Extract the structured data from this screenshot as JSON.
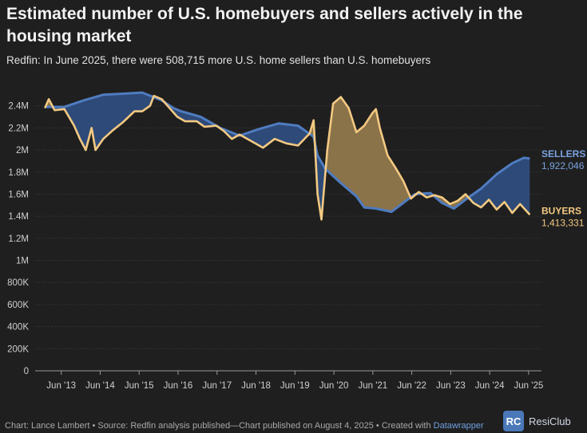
{
  "title": "Estimated number of U.S. homebuyers and sellers actively in the housing market",
  "subtitle": "Redfin: In June 2025, there were 508,715 more U.S. home sellers than U.S. homebuyers",
  "footer": {
    "credit": "Chart: Lance Lambert • Source: Redfin analysis published—Chart published on August 4, 2025 • Created with ",
    "tool": "Datawrapper"
  },
  "brand": {
    "logo": "RC",
    "name": "ResiClub"
  },
  "colors": {
    "sellers": "#4f7cc0",
    "buyers": "#f3c982",
    "fill_sellers_above": "#2e4a78",
    "fill_buyers_above": "#8a7249"
  },
  "chart_data": {
    "type": "area",
    "title": "Estimated number of U.S. homebuyers and sellers actively in the housing market",
    "ylim": [
      0,
      2600000
    ],
    "y_ticks": [
      0,
      200000,
      400000,
      600000,
      800000,
      1000000,
      1200000,
      1400000,
      1600000,
      1800000,
      2000000,
      2200000,
      2400000
    ],
    "y_tick_labels": [
      "0",
      "200K",
      "400K",
      "600K",
      "800K",
      "1M",
      "1.2M",
      "1.4M",
      "1.6M",
      "1.8M",
      "2M",
      "2.2M",
      "2.4M"
    ],
    "xlim": [
      2012.75,
      2025.75
    ],
    "x_ticks": [
      2013.42,
      2014.42,
      2015.42,
      2016.42,
      2017.42,
      2018.42,
      2019.42,
      2020.42,
      2021.42,
      2022.42,
      2023.42,
      2024.42,
      2025.42
    ],
    "x_tick_labels": [
      "Jun '13",
      "Jun '14",
      "Jun '15",
      "Jun '16",
      "Jun '17",
      "Jun '18",
      "Jun '19",
      "Jun '20",
      "Jun '21",
      "Jun '22",
      "Jun '23",
      "Jun '24",
      "Jun '25"
    ],
    "series": [
      {
        "name": "SELLERS",
        "end_label": "SELLERS",
        "end_value_label": "1,922,046",
        "points": [
          [
            2013.0,
            2390000
          ],
          [
            2013.5,
            2390000
          ],
          [
            2014.0,
            2450000
          ],
          [
            2014.5,
            2500000
          ],
          [
            2015.0,
            2510000
          ],
          [
            2015.5,
            2520000
          ],
          [
            2016.0,
            2450000
          ],
          [
            2016.3,
            2380000
          ],
          [
            2016.5,
            2350000
          ],
          [
            2017.0,
            2300000
          ],
          [
            2017.5,
            2200000
          ],
          [
            2018.0,
            2130000
          ],
          [
            2018.5,
            2190000
          ],
          [
            2019.0,
            2240000
          ],
          [
            2019.5,
            2220000
          ],
          [
            2019.9,
            2120000
          ],
          [
            2020.0,
            1950000
          ],
          [
            2020.2,
            1830000
          ],
          [
            2020.6,
            1700000
          ],
          [
            2021.0,
            1580000
          ],
          [
            2021.2,
            1480000
          ],
          [
            2021.5,
            1470000
          ],
          [
            2021.9,
            1440000
          ],
          [
            2022.2,
            1520000
          ],
          [
            2022.5,
            1600000
          ],
          [
            2022.9,
            1610000
          ],
          [
            2023.2,
            1520000
          ],
          [
            2023.5,
            1470000
          ],
          [
            2023.8,
            1550000
          ],
          [
            2024.2,
            1650000
          ],
          [
            2024.6,
            1780000
          ],
          [
            2025.0,
            1880000
          ],
          [
            2025.3,
            1930000
          ],
          [
            2025.45,
            1922046
          ]
        ]
      },
      {
        "name": "BUYERS",
        "end_label": "BUYERS",
        "end_value_label": "1,413,331",
        "points": [
          [
            2013.0,
            2380000
          ],
          [
            2013.1,
            2460000
          ],
          [
            2013.25,
            2360000
          ],
          [
            2013.5,
            2370000
          ],
          [
            2013.75,
            2220000
          ],
          [
            2013.9,
            2100000
          ],
          [
            2014.05,
            2000000
          ],
          [
            2014.2,
            2200000
          ],
          [
            2014.3,
            2000000
          ],
          [
            2014.5,
            2100000
          ],
          [
            2014.75,
            2180000
          ],
          [
            2015.0,
            2250000
          ],
          [
            2015.3,
            2350000
          ],
          [
            2015.5,
            2350000
          ],
          [
            2015.7,
            2400000
          ],
          [
            2015.8,
            2490000
          ],
          [
            2016.0,
            2460000
          ],
          [
            2016.2,
            2380000
          ],
          [
            2016.4,
            2300000
          ],
          [
            2016.6,
            2260000
          ],
          [
            2016.9,
            2260000
          ],
          [
            2017.1,
            2210000
          ],
          [
            2017.4,
            2220000
          ],
          [
            2017.6,
            2170000
          ],
          [
            2017.8,
            2100000
          ],
          [
            2018.0,
            2140000
          ],
          [
            2018.3,
            2080000
          ],
          [
            2018.6,
            2020000
          ],
          [
            2018.9,
            2100000
          ],
          [
            2019.2,
            2060000
          ],
          [
            2019.5,
            2040000
          ],
          [
            2019.8,
            2150000
          ],
          [
            2019.9,
            2270000
          ],
          [
            2020.0,
            1600000
          ],
          [
            2020.1,
            1370000
          ],
          [
            2020.25,
            2000000
          ],
          [
            2020.4,
            2420000
          ],
          [
            2020.6,
            2480000
          ],
          [
            2020.8,
            2380000
          ],
          [
            2021.0,
            2160000
          ],
          [
            2021.2,
            2220000
          ],
          [
            2021.4,
            2330000
          ],
          [
            2021.5,
            2370000
          ],
          [
            2021.6,
            2200000
          ],
          [
            2021.8,
            1950000
          ],
          [
            2022.0,
            1840000
          ],
          [
            2022.2,
            1720000
          ],
          [
            2022.4,
            1560000
          ],
          [
            2022.6,
            1620000
          ],
          [
            2022.8,
            1570000
          ],
          [
            2023.0,
            1590000
          ],
          [
            2023.2,
            1570000
          ],
          [
            2023.4,
            1510000
          ],
          [
            2023.6,
            1540000
          ],
          [
            2023.8,
            1600000
          ],
          [
            2024.0,
            1520000
          ],
          [
            2024.2,
            1480000
          ],
          [
            2024.4,
            1550000
          ],
          [
            2024.6,
            1460000
          ],
          [
            2024.8,
            1530000
          ],
          [
            2025.0,
            1430000
          ],
          [
            2025.2,
            1510000
          ],
          [
            2025.45,
            1413331
          ]
        ]
      }
    ]
  }
}
